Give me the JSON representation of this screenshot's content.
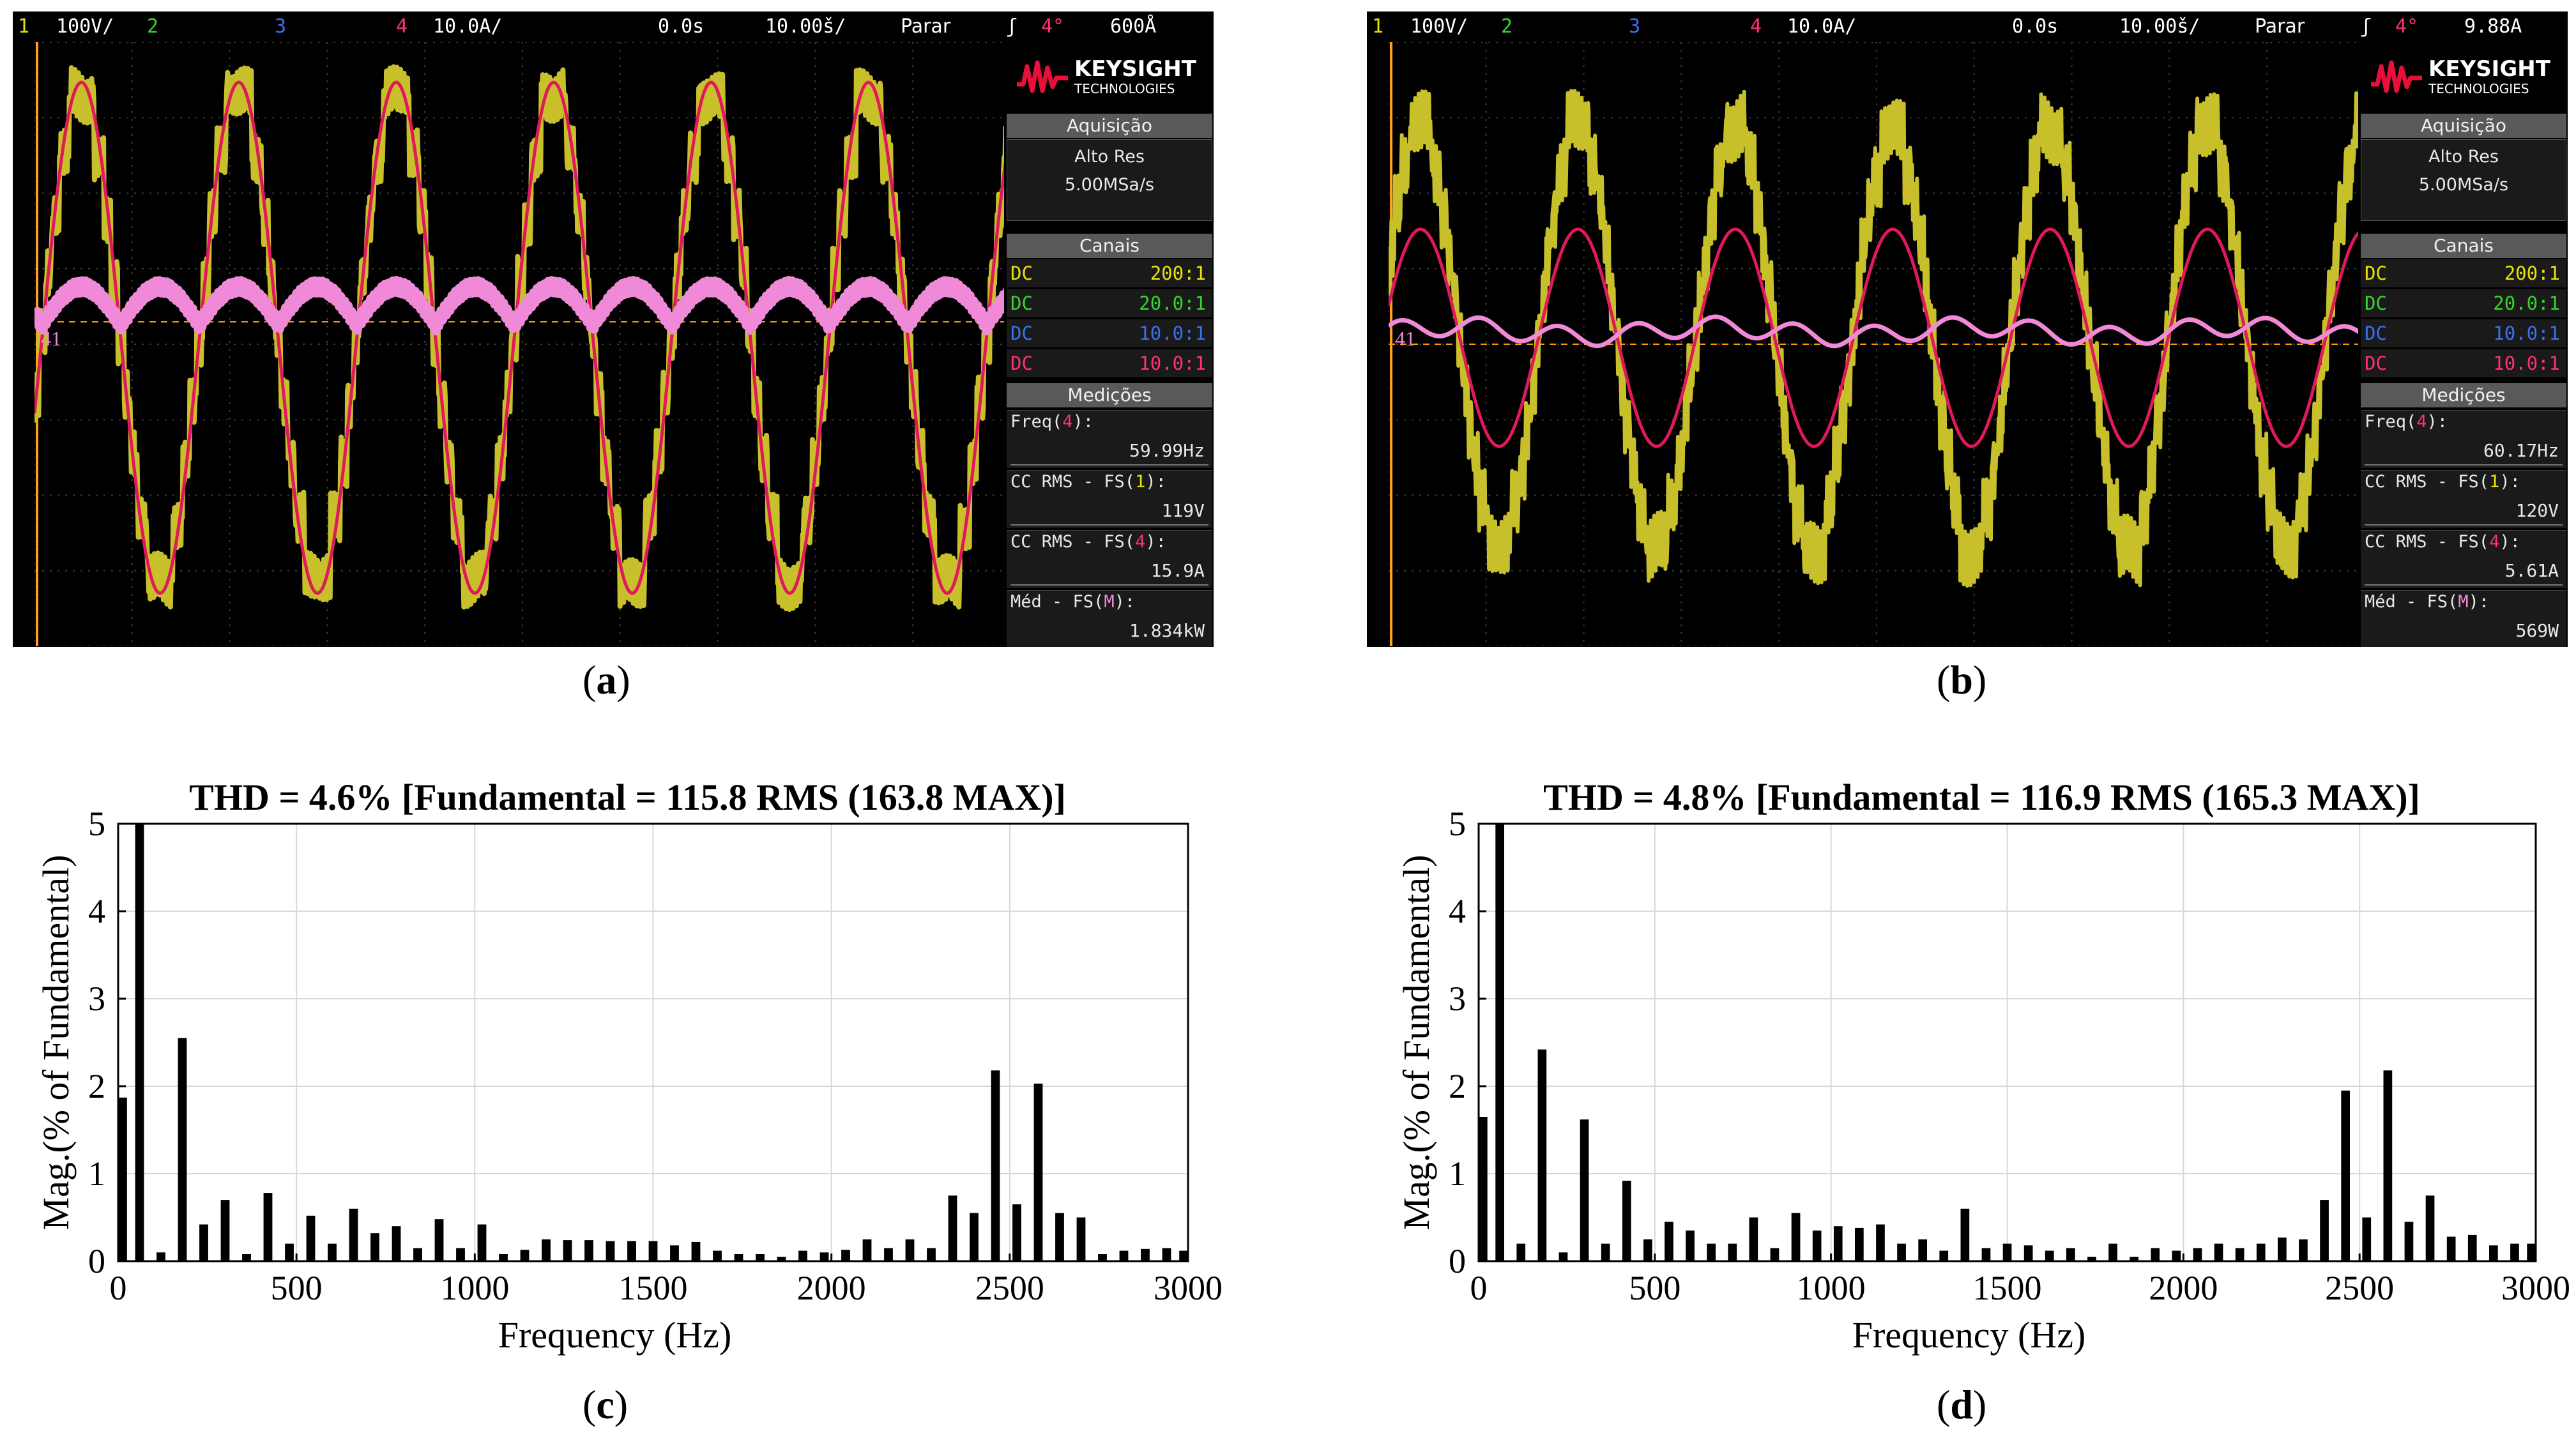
{
  "colors": {
    "ch1": "#e8e20a",
    "ch2": "#33d62a",
    "ch3": "#3c6ff0",
    "ch4": "#ff2f7a",
    "trace_yellow": "#c8c02a",
    "trace_pink": "#f08ad8",
    "trace_red": "#e0185c"
  },
  "scope_a": {
    "topbar": {
      "ch1_num": "1",
      "ch1_scale": "100V/",
      "ch2_num": "2",
      "ch3_num": "3",
      "ch4_num": "4",
      "ch4_scale": "10.0A/",
      "delay": "0.0s",
      "timebase": "10.00š/",
      "run_state": "Parar",
      "trig_icon": "ʃ",
      "trig_ch": "4°",
      "trig_level": "600Å"
    },
    "logo": {
      "brand": "KEYSIGHT",
      "sub": "TECHNOLOGIES"
    },
    "acq": {
      "header": "Aquisição",
      "mode": "Alto Res",
      "rate": "5.00MSa/s"
    },
    "channels": {
      "header": "Canais",
      "rows": [
        {
          "coupling": "DC",
          "ratio": "200:1"
        },
        {
          "coupling": "DC",
          "ratio": "20.0:1"
        },
        {
          "coupling": "DC",
          "ratio": "10.0:1"
        },
        {
          "coupling": "DC",
          "ratio": "10.0:1"
        }
      ]
    },
    "measurements": {
      "header": "Medições",
      "items": [
        {
          "label_pre": "Freq(",
          "label_ch": "4",
          "label_post": "):",
          "value": "59.99Hz"
        },
        {
          "label_pre": "CC RMS - FS(",
          "label_ch": "1",
          "label_post": "):",
          "value": "119V"
        },
        {
          "label_pre": "CC RMS - FS(",
          "label_ch": "4",
          "label_post": "):",
          "value": "15.9A"
        },
        {
          "label_pre": "Méd - FS(",
          "label_ch": "M",
          "label_post": "):",
          "value": "1.834kW"
        }
      ]
    },
    "marker_label": "41",
    "caption": "a"
  },
  "scope_b": {
    "topbar": {
      "ch1_num": "1",
      "ch1_scale": "100V/",
      "ch2_num": "2",
      "ch3_num": "3",
      "ch4_num": "4",
      "ch4_scale": "10.0A/",
      "delay": "0.0s",
      "timebase": "10.00š/",
      "run_state": "Parar",
      "trig_icon": "ʃ",
      "trig_ch": "4°",
      "trig_level": "9.88A"
    },
    "logo": {
      "brand": "KEYSIGHT",
      "sub": "TECHNOLOGIES"
    },
    "acq": {
      "header": "Aquisição",
      "mode": "Alto Res",
      "rate": "5.00MSa/s"
    },
    "channels": {
      "header": "Canais",
      "rows": [
        {
          "coupling": "DC",
          "ratio": "200:1"
        },
        {
          "coupling": "DC",
          "ratio": "20.0:1"
        },
        {
          "coupling": "DC",
          "ratio": "10.0:1"
        },
        {
          "coupling": "DC",
          "ratio": "10.0:1"
        }
      ]
    },
    "measurements": {
      "header": "Medições",
      "items": [
        {
          "label_pre": "Freq(",
          "label_ch": "4",
          "label_post": "):",
          "value": "60.17Hz"
        },
        {
          "label_pre": "CC RMS - FS(",
          "label_ch": "1",
          "label_post": "):",
          "value": "120V"
        },
        {
          "label_pre": "CC RMS - FS(",
          "label_ch": "4",
          "label_post": "):",
          "value": "5.61A"
        },
        {
          "label_pre": "Méd - FS(",
          "label_ch": "M",
          "label_post": "):",
          "value": "569W"
        }
      ]
    },
    "marker_label": "41",
    "caption": "b"
  },
  "chart_data": [
    {
      "type": "bar",
      "id": "c",
      "title": "THD = 4.6% [Fundamental = 115.8 RMS (163.8 MAX)]",
      "xlabel": "Frequency (Hz)",
      "ylabel": "Mag.(% of Fundamental)",
      "xlim": [
        0,
        3000
      ],
      "ylim": [
        0,
        5
      ],
      "xticks": [
        "0",
        "500",
        "1000",
        "1500",
        "2000",
        "2500",
        "3000"
      ],
      "yticks": [
        "0",
        "1",
        "2",
        "3",
        "4",
        "5"
      ],
      "bar_width_hz": 40,
      "x": [
        0,
        60,
        120,
        180,
        240,
        300,
        360,
        420,
        480,
        540,
        600,
        660,
        720,
        780,
        840,
        900,
        960,
        1020,
        1080,
        1140,
        1200,
        1260,
        1320,
        1380,
        1440,
        1500,
        1560,
        1620,
        1680,
        1740,
        1800,
        1860,
        1920,
        1980,
        2040,
        2100,
        2160,
        2220,
        2280,
        2340,
        2400,
        2460,
        2520,
        2580,
        2640,
        2700,
        2760,
        2820,
        2880,
        2940,
        3000
      ],
      "values": [
        1.87,
        5.0,
        0.1,
        2.55,
        0.42,
        0.7,
        0.08,
        0.78,
        0.2,
        0.52,
        0.2,
        0.6,
        0.32,
        0.4,
        0.15,
        0.48,
        0.15,
        0.42,
        0.08,
        0.13,
        0.25,
        0.24,
        0.24,
        0.23,
        0.23,
        0.23,
        0.18,
        0.22,
        0.12,
        0.08,
        0.08,
        0.05,
        0.12,
        0.1,
        0.13,
        0.25,
        0.15,
        0.25,
        0.15,
        0.75,
        0.55,
        2.18,
        0.65,
        2.03,
        0.55,
        0.5,
        0.08,
        0.12,
        0.14,
        0.15,
        0.12
      ],
      "caption": "c"
    },
    {
      "type": "bar",
      "id": "d",
      "title": "THD = 4.8% [Fundamental = 116.9 RMS (165.3 MAX)]",
      "xlabel": "Frequency (Hz)",
      "ylabel": "Mag.(% of Fundamental)",
      "xlim": [
        0,
        3000
      ],
      "ylim": [
        0,
        5
      ],
      "xticks": [
        "0",
        "500",
        "1000",
        "1500",
        "2000",
        "2500",
        "3000"
      ],
      "yticks": [
        "0",
        "1",
        "2",
        "3",
        "4",
        "5"
      ],
      "bar_width_hz": 40,
      "x": [
        0,
        60,
        120,
        180,
        240,
        300,
        360,
        420,
        480,
        540,
        600,
        660,
        720,
        780,
        840,
        900,
        960,
        1020,
        1080,
        1140,
        1200,
        1260,
        1320,
        1380,
        1440,
        1500,
        1560,
        1620,
        1680,
        1740,
        1800,
        1860,
        1920,
        1980,
        2040,
        2100,
        2160,
        2220,
        2280,
        2340,
        2400,
        2460,
        2520,
        2580,
        2640,
        2700,
        2760,
        2820,
        2880,
        2940,
        3000
      ],
      "values": [
        1.65,
        5.0,
        0.2,
        2.42,
        0.1,
        1.62,
        0.2,
        0.92,
        0.25,
        0.45,
        0.35,
        0.2,
        0.2,
        0.5,
        0.15,
        0.55,
        0.35,
        0.4,
        0.38,
        0.42,
        0.2,
        0.25,
        0.12,
        0.6,
        0.15,
        0.2,
        0.18,
        0.12,
        0.15,
        0.05,
        0.2,
        0.05,
        0.15,
        0.12,
        0.15,
        0.2,
        0.15,
        0.2,
        0.27,
        0.25,
        0.7,
        1.95,
        0.5,
        2.18,
        0.45,
        0.75,
        0.28,
        0.3,
        0.18,
        0.2,
        0.2
      ],
      "caption": "d"
    }
  ]
}
